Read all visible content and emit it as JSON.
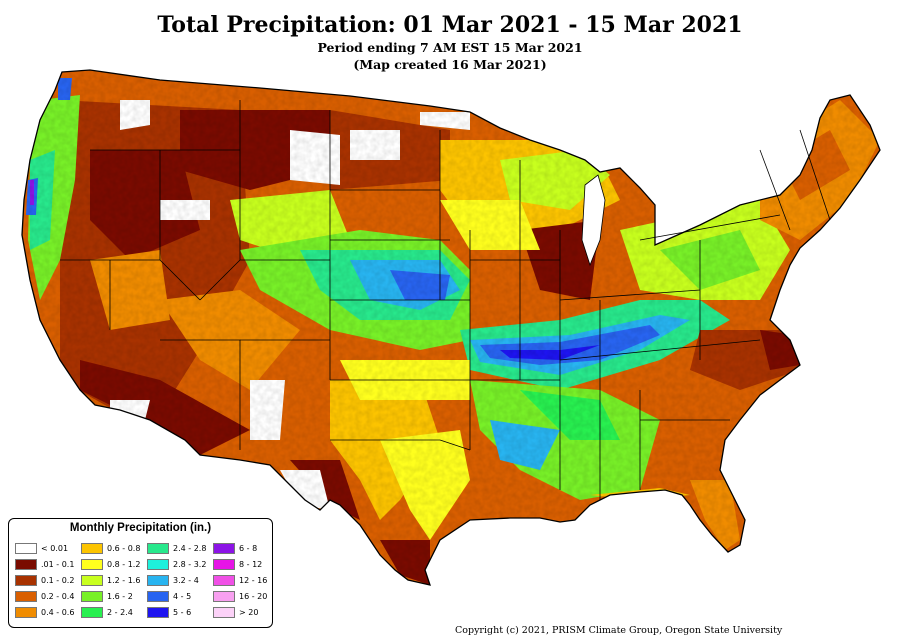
{
  "title": "Total Precipitation: 01 Mar 2021 - 15 Mar 2021",
  "subtitle_period": "Period ending 7 AM EST 15 Mar 2021",
  "subtitle_created": "(Map created 16 Mar 2021)",
  "copyright": "Copyright (c) 2021, PRISM Climate Group, Oregon State University",
  "legend": {
    "title": "Monthly Precipitation (in.)",
    "items": [
      {
        "label": "< 0.01",
        "color": "#ffffff"
      },
      {
        "label": ".01 - 0.1",
        "color": "#7a0b00"
      },
      {
        "label": "0.1 - 0.2",
        "color": "#a83200"
      },
      {
        "label": "0.2 - 0.4",
        "color": "#d95f00"
      },
      {
        "label": "0.4 - 0.6",
        "color": "#f08c00"
      },
      {
        "label": "0.6 - 0.8",
        "color": "#fcc400"
      },
      {
        "label": "0.8 - 1.2",
        "color": "#ffff1e"
      },
      {
        "label": "1.2 - 1.6",
        "color": "#c8ff1e"
      },
      {
        "label": "1.6 - 2",
        "color": "#78f028"
      },
      {
        "label": "2 - 2.4",
        "color": "#28f050"
      },
      {
        "label": "2.4 - 2.8",
        "color": "#28e88c"
      },
      {
        "label": "2.8 - 3.2",
        "color": "#1ef0dc"
      },
      {
        "label": "3.2 - 4",
        "color": "#28b4f0"
      },
      {
        "label": "4 - 5",
        "color": "#2864f0"
      },
      {
        "label": "5 - 6",
        "color": "#1e14f0"
      },
      {
        "label": "6 - 8",
        "color": "#8c14e6"
      },
      {
        "label": "8 - 12",
        "color": "#e614e6"
      },
      {
        "label": "12 - 16",
        "color": "#f050e6"
      },
      {
        "label": "16 - 20",
        "color": "#f8a0f0"
      },
      {
        "label": "> 20",
        "color": "#fcd2f8"
      }
    ]
  }
}
